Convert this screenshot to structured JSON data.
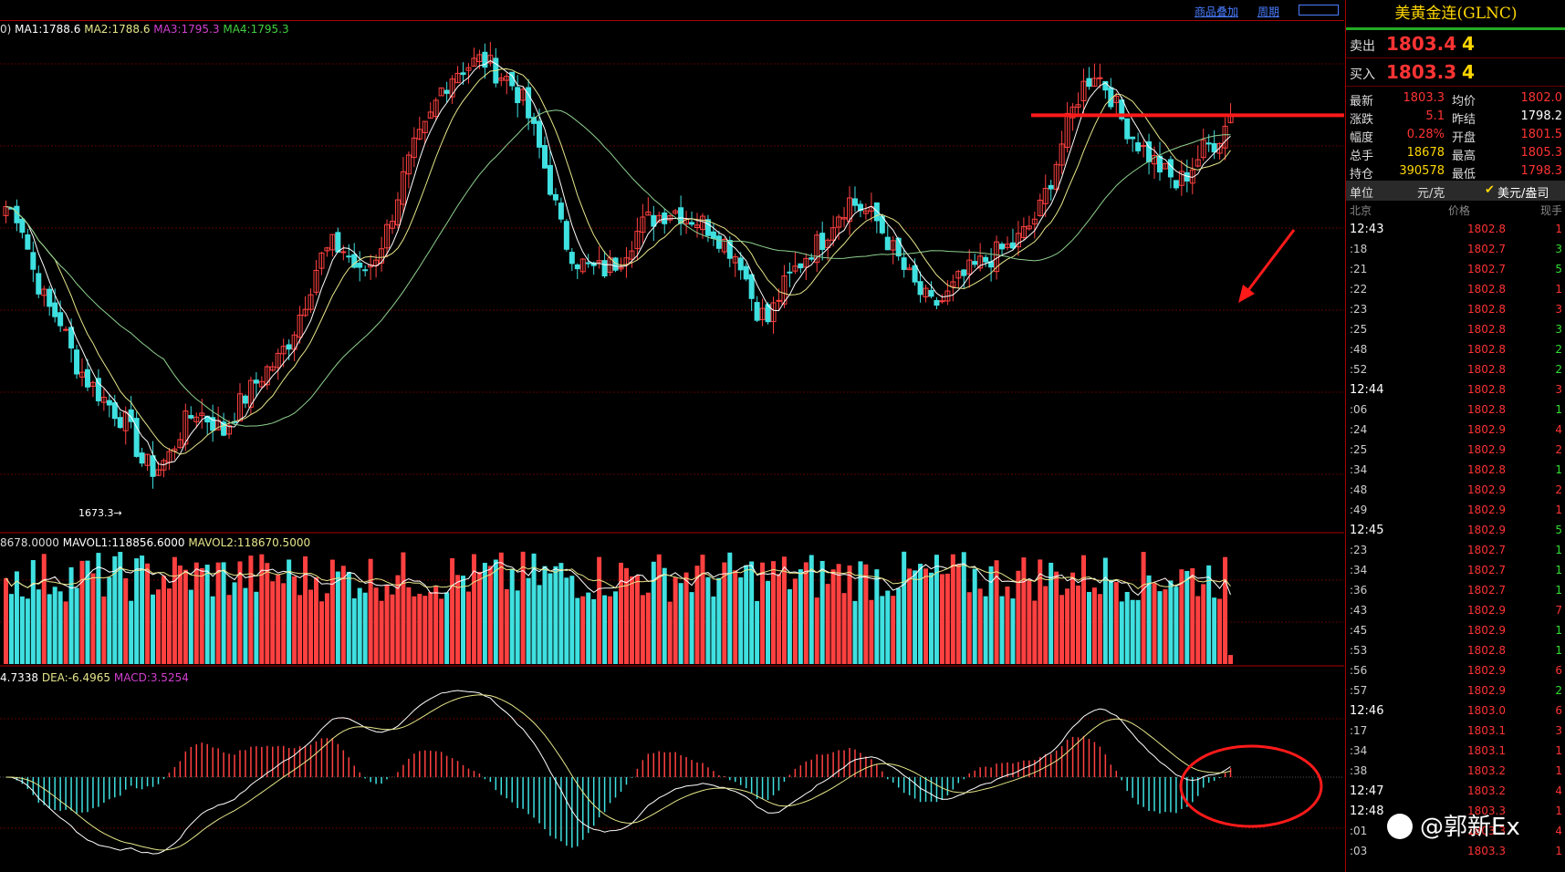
{
  "toolbar": {
    "overlay_label": "商品叠加",
    "period_label": "周期"
  },
  "indicators": {
    "price_prefix": "0)",
    "ma1": "MA1:1788.6",
    "ma2": "MA2:1788.6",
    "ma3": "MA3:1795.3",
    "ma4": "MA4:1795.3",
    "vol_prefix": "8678.0000",
    "mavol1": "MAVOL1:118856.6000",
    "mavol2": "MAVOL2:118670.5000",
    "dif": "4.7338",
    "dea": "DEA:-6.4965",
    "macd": "MACD:3.5254",
    "low_label": "1673.3"
  },
  "colors": {
    "up": "#ff4040",
    "down": "#3fe0e0",
    "ma_white": "#ffffff",
    "ma_yellow": "#e6e68a",
    "ma_green": "#8fd18f",
    "ma3": "#d040d0",
    "ma4": "#40d040",
    "annotation": "#ff1a1a"
  },
  "panel": {
    "title": "美黄金连(GLNC)",
    "ask": {
      "label": "卖出",
      "price": "1803.4",
      "vol": "4"
    },
    "bid": {
      "label": "买入",
      "price": "1803.3",
      "vol": "4"
    },
    "stats": [
      {
        "l1": "最新",
        "v1": "1803.3",
        "l2": "均价",
        "v2": "1802.0"
      },
      {
        "l1": "涨跌",
        "v1": "5.1",
        "l2": "昨结",
        "v2": "1798.2"
      },
      {
        "l1": "幅度",
        "v1": "0.28%",
        "l2": "开盘",
        "v2": "1801.5"
      },
      {
        "l1": "总手",
        "v1": "18678",
        "l2": "最高",
        "v2": "1805.3"
      },
      {
        "l1": "持仓",
        "v1": "390578",
        "l2": "最低",
        "v2": "1798.3"
      }
    ],
    "unit": {
      "label": "单位",
      "unit1": "元/克",
      "unit2": "美元/盎司"
    },
    "table_head": {
      "time": "北京",
      "price": "价格",
      "vol": "现手"
    },
    "ticks": [
      {
        "t": "12:43",
        "p": "1802.8",
        "v": "1",
        "c": "#ff3333"
      },
      {
        "t": ":18",
        "p": "1802.7",
        "v": "3",
        "c": "#33dd33"
      },
      {
        "t": ":21",
        "p": "1802.7",
        "v": "5",
        "c": "#33dd33"
      },
      {
        "t": ":22",
        "p": "1802.8",
        "v": "1",
        "c": "#ff3333"
      },
      {
        "t": ":23",
        "p": "1802.8",
        "v": "3",
        "c": "#ff3333"
      },
      {
        "t": ":25",
        "p": "1802.8",
        "v": "3",
        "c": "#33dd33"
      },
      {
        "t": ":48",
        "p": "1802.8",
        "v": "2",
        "c": "#33dd33"
      },
      {
        "t": ":52",
        "p": "1802.8",
        "v": "2",
        "c": "#33dd33"
      },
      {
        "t": "12:44",
        "p": "1802.8",
        "v": "3",
        "c": "#ff3333"
      },
      {
        "t": ":06",
        "p": "1802.8",
        "v": "1",
        "c": "#33dd33"
      },
      {
        "t": ":24",
        "p": "1802.9",
        "v": "4",
        "c": "#ff3333"
      },
      {
        "t": ":25",
        "p": "1802.9",
        "v": "2",
        "c": "#ff3333"
      },
      {
        "t": ":34",
        "p": "1802.8",
        "v": "1",
        "c": "#33dd33"
      },
      {
        "t": ":48",
        "p": "1802.9",
        "v": "2",
        "c": "#ff3333"
      },
      {
        "t": ":49",
        "p": "1802.9",
        "v": "1",
        "c": "#ff3333"
      },
      {
        "t": "12:45",
        "p": "1802.9",
        "v": "5",
        "c": "#33dd33"
      },
      {
        "t": ":23",
        "p": "1802.7",
        "v": "1",
        "c": "#33dd33"
      },
      {
        "t": ":34",
        "p": "1802.7",
        "v": "1",
        "c": "#33dd33"
      },
      {
        "t": ":36",
        "p": "1802.7",
        "v": "1",
        "c": "#33dd33"
      },
      {
        "t": ":43",
        "p": "1802.9",
        "v": "7",
        "c": "#ff3333"
      },
      {
        "t": ":45",
        "p": "1802.9",
        "v": "1",
        "c": "#33dd33"
      },
      {
        "t": ":53",
        "p": "1802.8",
        "v": "1",
        "c": "#33dd33"
      },
      {
        "t": ":56",
        "p": "1802.9",
        "v": "6",
        "c": "#ff3333"
      },
      {
        "t": ":57",
        "p": "1802.9",
        "v": "2",
        "c": "#33dd33"
      },
      {
        "t": "12:46",
        "p": "1803.0",
        "v": "6",
        "c": "#ff3333"
      },
      {
        "t": ":17",
        "p": "1803.1",
        "v": "3",
        "c": "#ff3333"
      },
      {
        "t": ":34",
        "p": "1803.1",
        "v": "1",
        "c": "#ff3333"
      },
      {
        "t": ":38",
        "p": "1803.2",
        "v": "1",
        "c": "#ff3333"
      },
      {
        "t": "12:47",
        "p": "1803.2",
        "v": "4",
        "c": "#ff3333"
      },
      {
        "t": "12:48",
        "p": "1803.3",
        "v": "1",
        "c": "#ff3333"
      },
      {
        "t": ":01",
        "p": "1803.3",
        "v": "4",
        "c": "#ff3333"
      },
      {
        "t": ":03",
        "p": "1803.3",
        "v": "1",
        "c": "#ff3333"
      }
    ]
  },
  "watermark": "@郭新Ex",
  "chart_data": {
    "type": "candlestick",
    "price_range": [
      1665,
      1835
    ],
    "low_marker": 1673.3,
    "resistance_line": 1803.3,
    "close_path": [
      1773,
      1770,
      1752,
      1740,
      1735,
      1722,
      1715,
      1710,
      1705,
      1700,
      1688,
      1685,
      1690,
      1700,
      1705,
      1702,
      1698,
      1706,
      1712,
      1718,
      1722,
      1730,
      1742,
      1755,
      1760,
      1758,
      1750,
      1755,
      1765,
      1780,
      1792,
      1800,
      1812,
      1818,
      1820,
      1822,
      1818,
      1815,
      1808,
      1795,
      1780,
      1762,
      1755,
      1752,
      1752,
      1755,
      1762,
      1768,
      1770,
      1772,
      1770,
      1768,
      1765,
      1760,
      1755,
      1740,
      1735,
      1745,
      1752,
      1758,
      1762,
      1770,
      1775,
      1772,
      1768,
      1760,
      1752,
      1745,
      1740,
      1742,
      1748,
      1752,
      1755,
      1758,
      1760,
      1765,
      1772,
      1785,
      1800,
      1812,
      1818,
      1812,
      1802,
      1795,
      1790,
      1785,
      1780,
      1785,
      1792,
      1795,
      1803
    ],
    "volume_ma_level": 118856.6,
    "macd": {
      "dif": 4.7338,
      "dea": -6.4965,
      "macd": 3.5254
    }
  }
}
